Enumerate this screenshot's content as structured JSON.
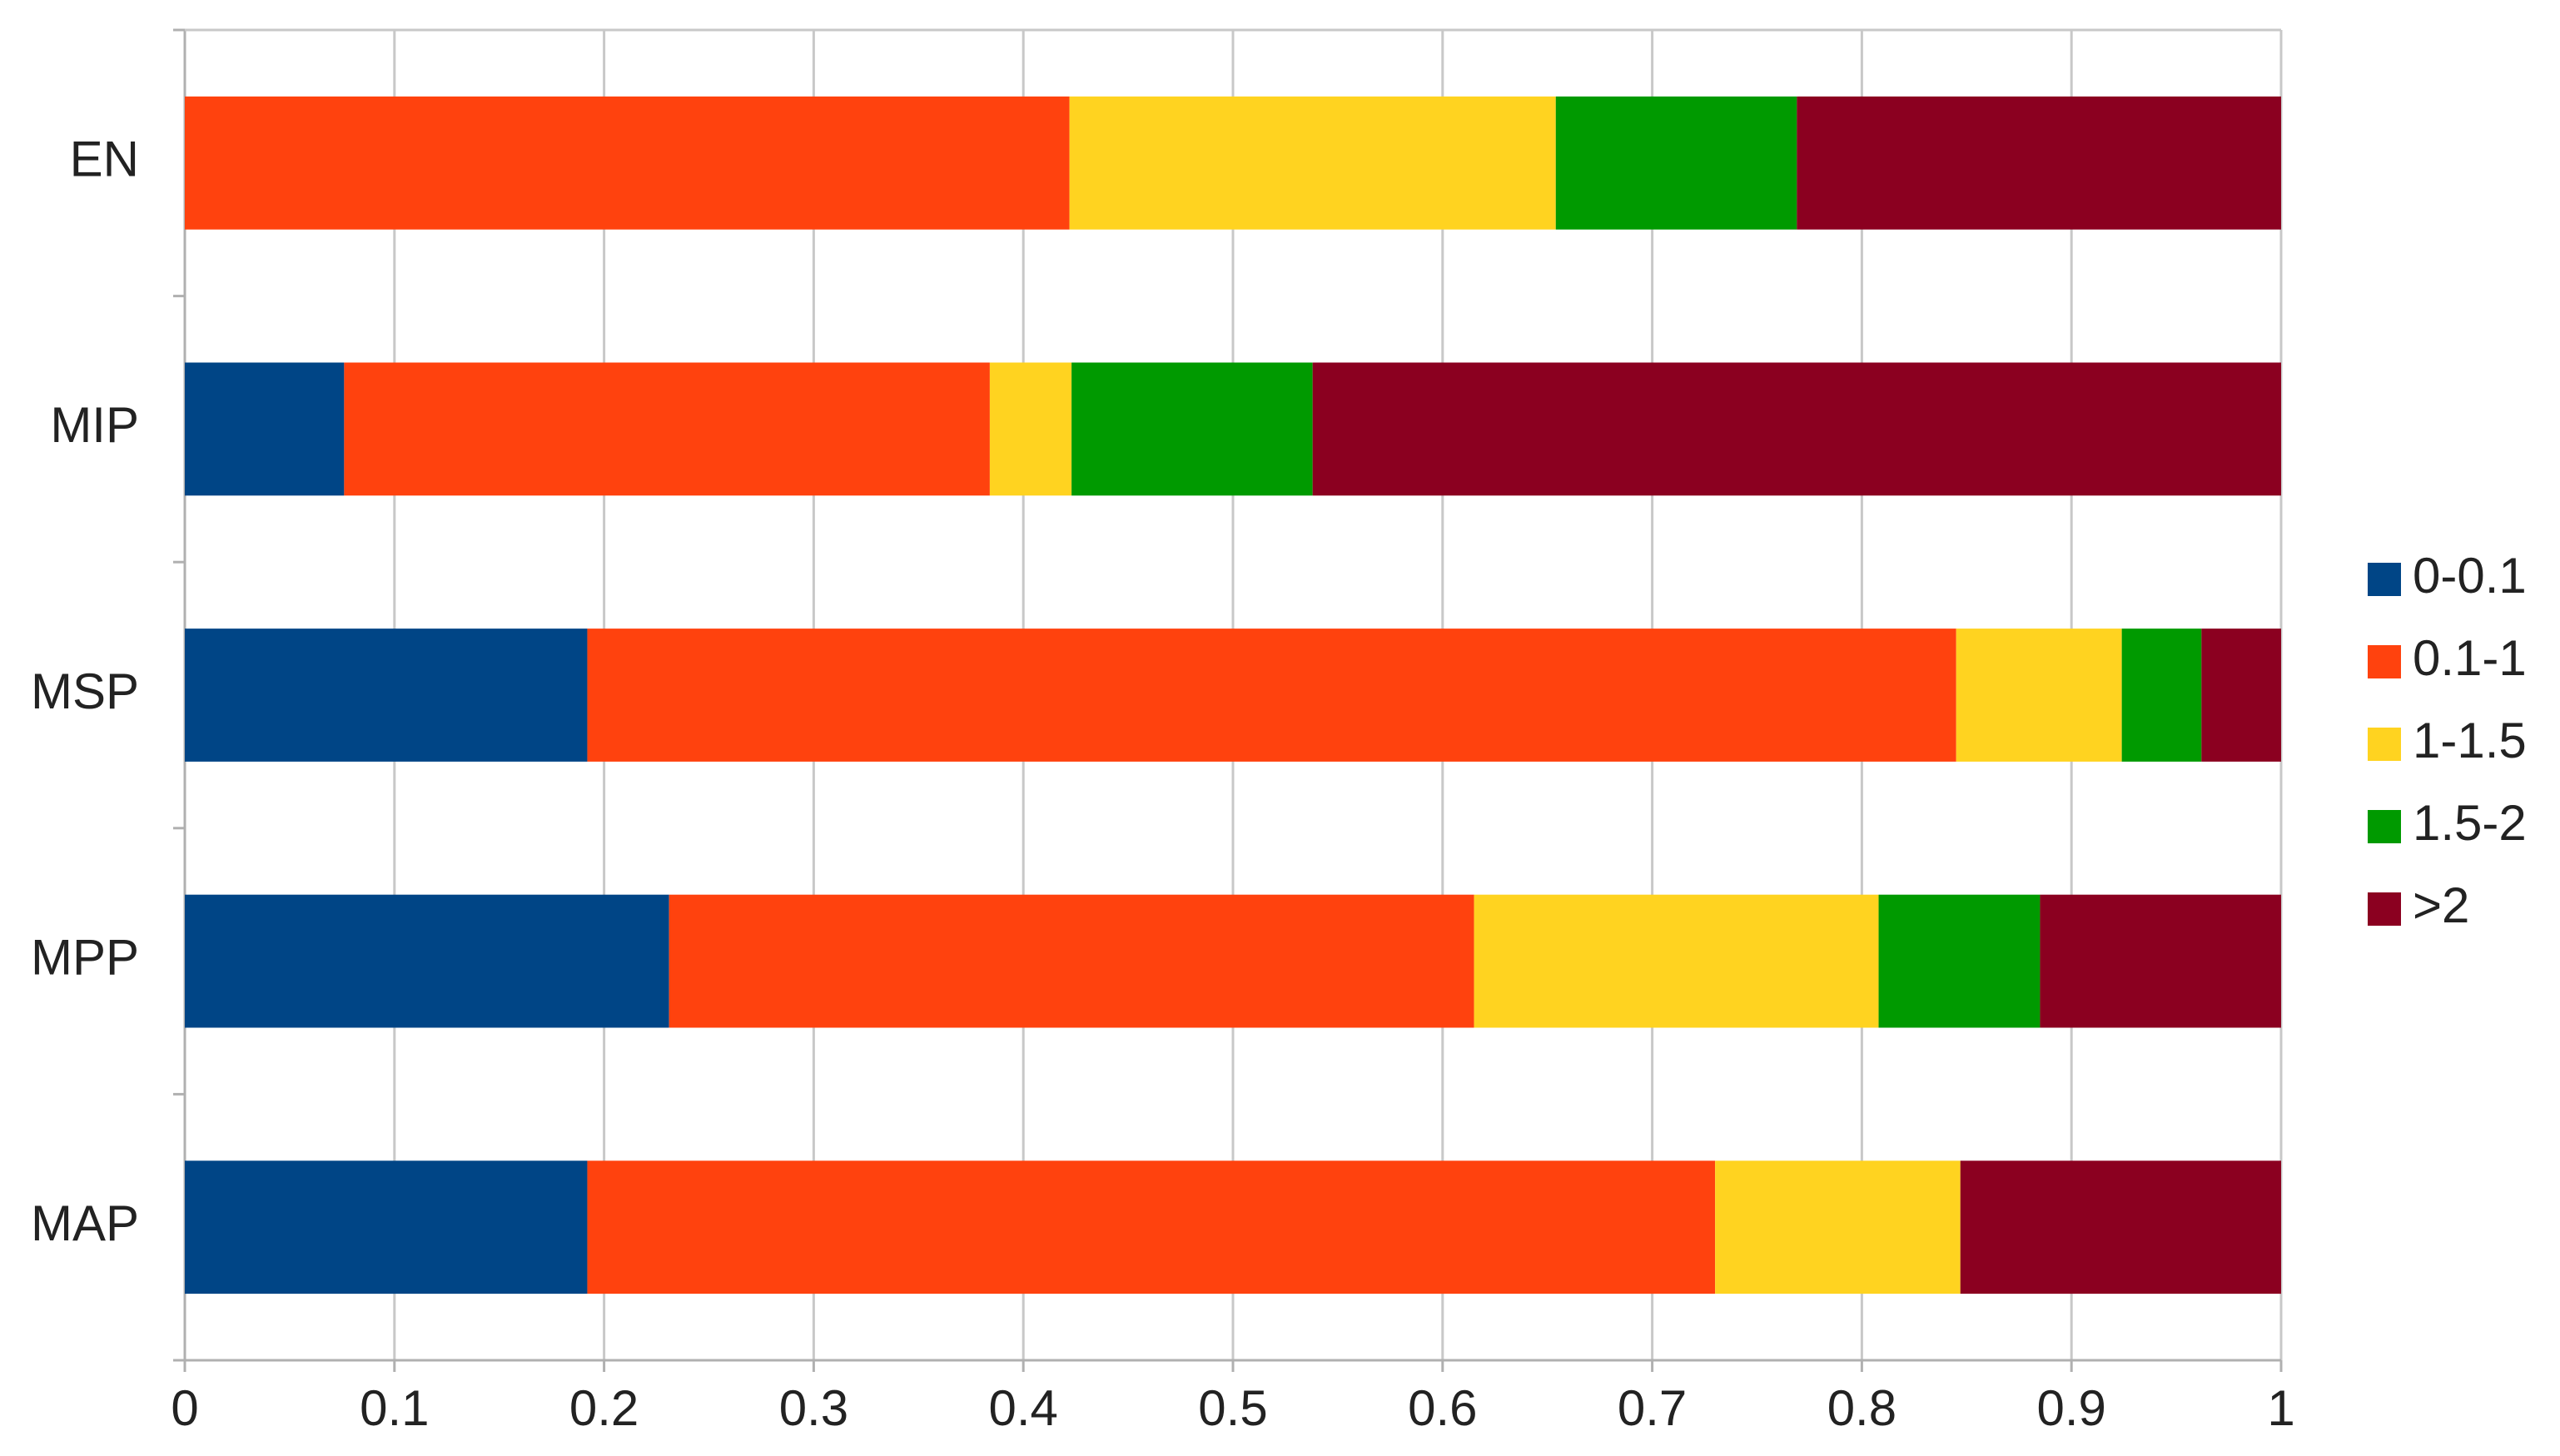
{
  "chart_data": {
    "type": "stacked-bar-horizontal",
    "categories": [
      "EN",
      "MIP",
      "MSP",
      "MPP",
      "MAP"
    ],
    "series": [
      {
        "name": "0-0.1",
        "color": "#004586",
        "values": [
          0,
          0.076,
          0.192,
          0.231,
          0.192
        ]
      },
      {
        "name": "0.1-1",
        "color": "#ff420e",
        "values": [
          0.422,
          0.308,
          0.653,
          0.384,
          0.538
        ]
      },
      {
        "name": "1-1.5",
        "color": "#ffd320",
        "values": [
          0.232,
          0.039,
          0.079,
          0.193,
          0.117
        ]
      },
      {
        "name": "1.5-2",
        "color": "#009a00",
        "values": [
          0.115,
          0.115,
          0.038,
          0.077,
          0
        ]
      },
      {
        "name": ">2",
        "color": "#8b0020",
        "values": [
          0.231,
          0.462,
          0.038,
          0.115,
          0.153
        ]
      }
    ],
    "xlim": [
      0,
      1
    ],
    "xticks": [
      0,
      0.1,
      0.2,
      0.3,
      0.4,
      0.5,
      0.6,
      0.7,
      0.8,
      0.9,
      1
    ],
    "grid": true,
    "legend": "right"
  }
}
